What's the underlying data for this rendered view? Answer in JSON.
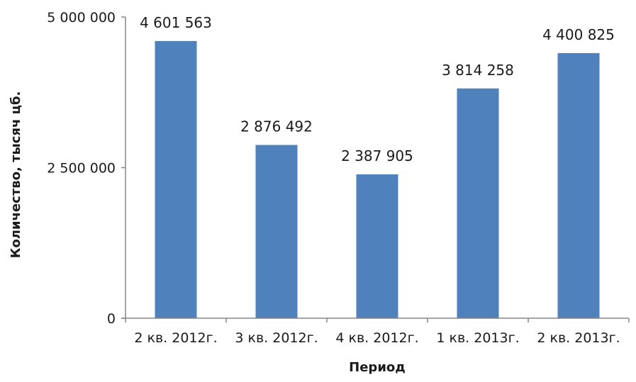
{
  "chart_data": {
    "type": "bar",
    "title": "",
    "xlabel": "Период",
    "ylabel": "Количество, тысяч цб.",
    "categories": [
      "2 кв. 2012г.",
      "3 кв. 2012г.",
      "4 кв. 2012г.",
      "1 кв. 2013г.",
      "2 кв. 2013г."
    ],
    "values": [
      4601563,
      2876492,
      2387905,
      3814258,
      4400825
    ],
    "value_labels": [
      "4 601 563",
      "2 876 492",
      "2 387 905",
      "3 814 258",
      "4 400 825"
    ],
    "ylim": [
      0,
      5000000
    ],
    "yticks": [
      0,
      2500000,
      5000000
    ],
    "ytick_labels": [
      "0",
      "2 500 000",
      "5 000 000"
    ],
    "grid": false,
    "legend": "none",
    "bar_color": "#4f81bd",
    "axis_color": "#868686"
  }
}
